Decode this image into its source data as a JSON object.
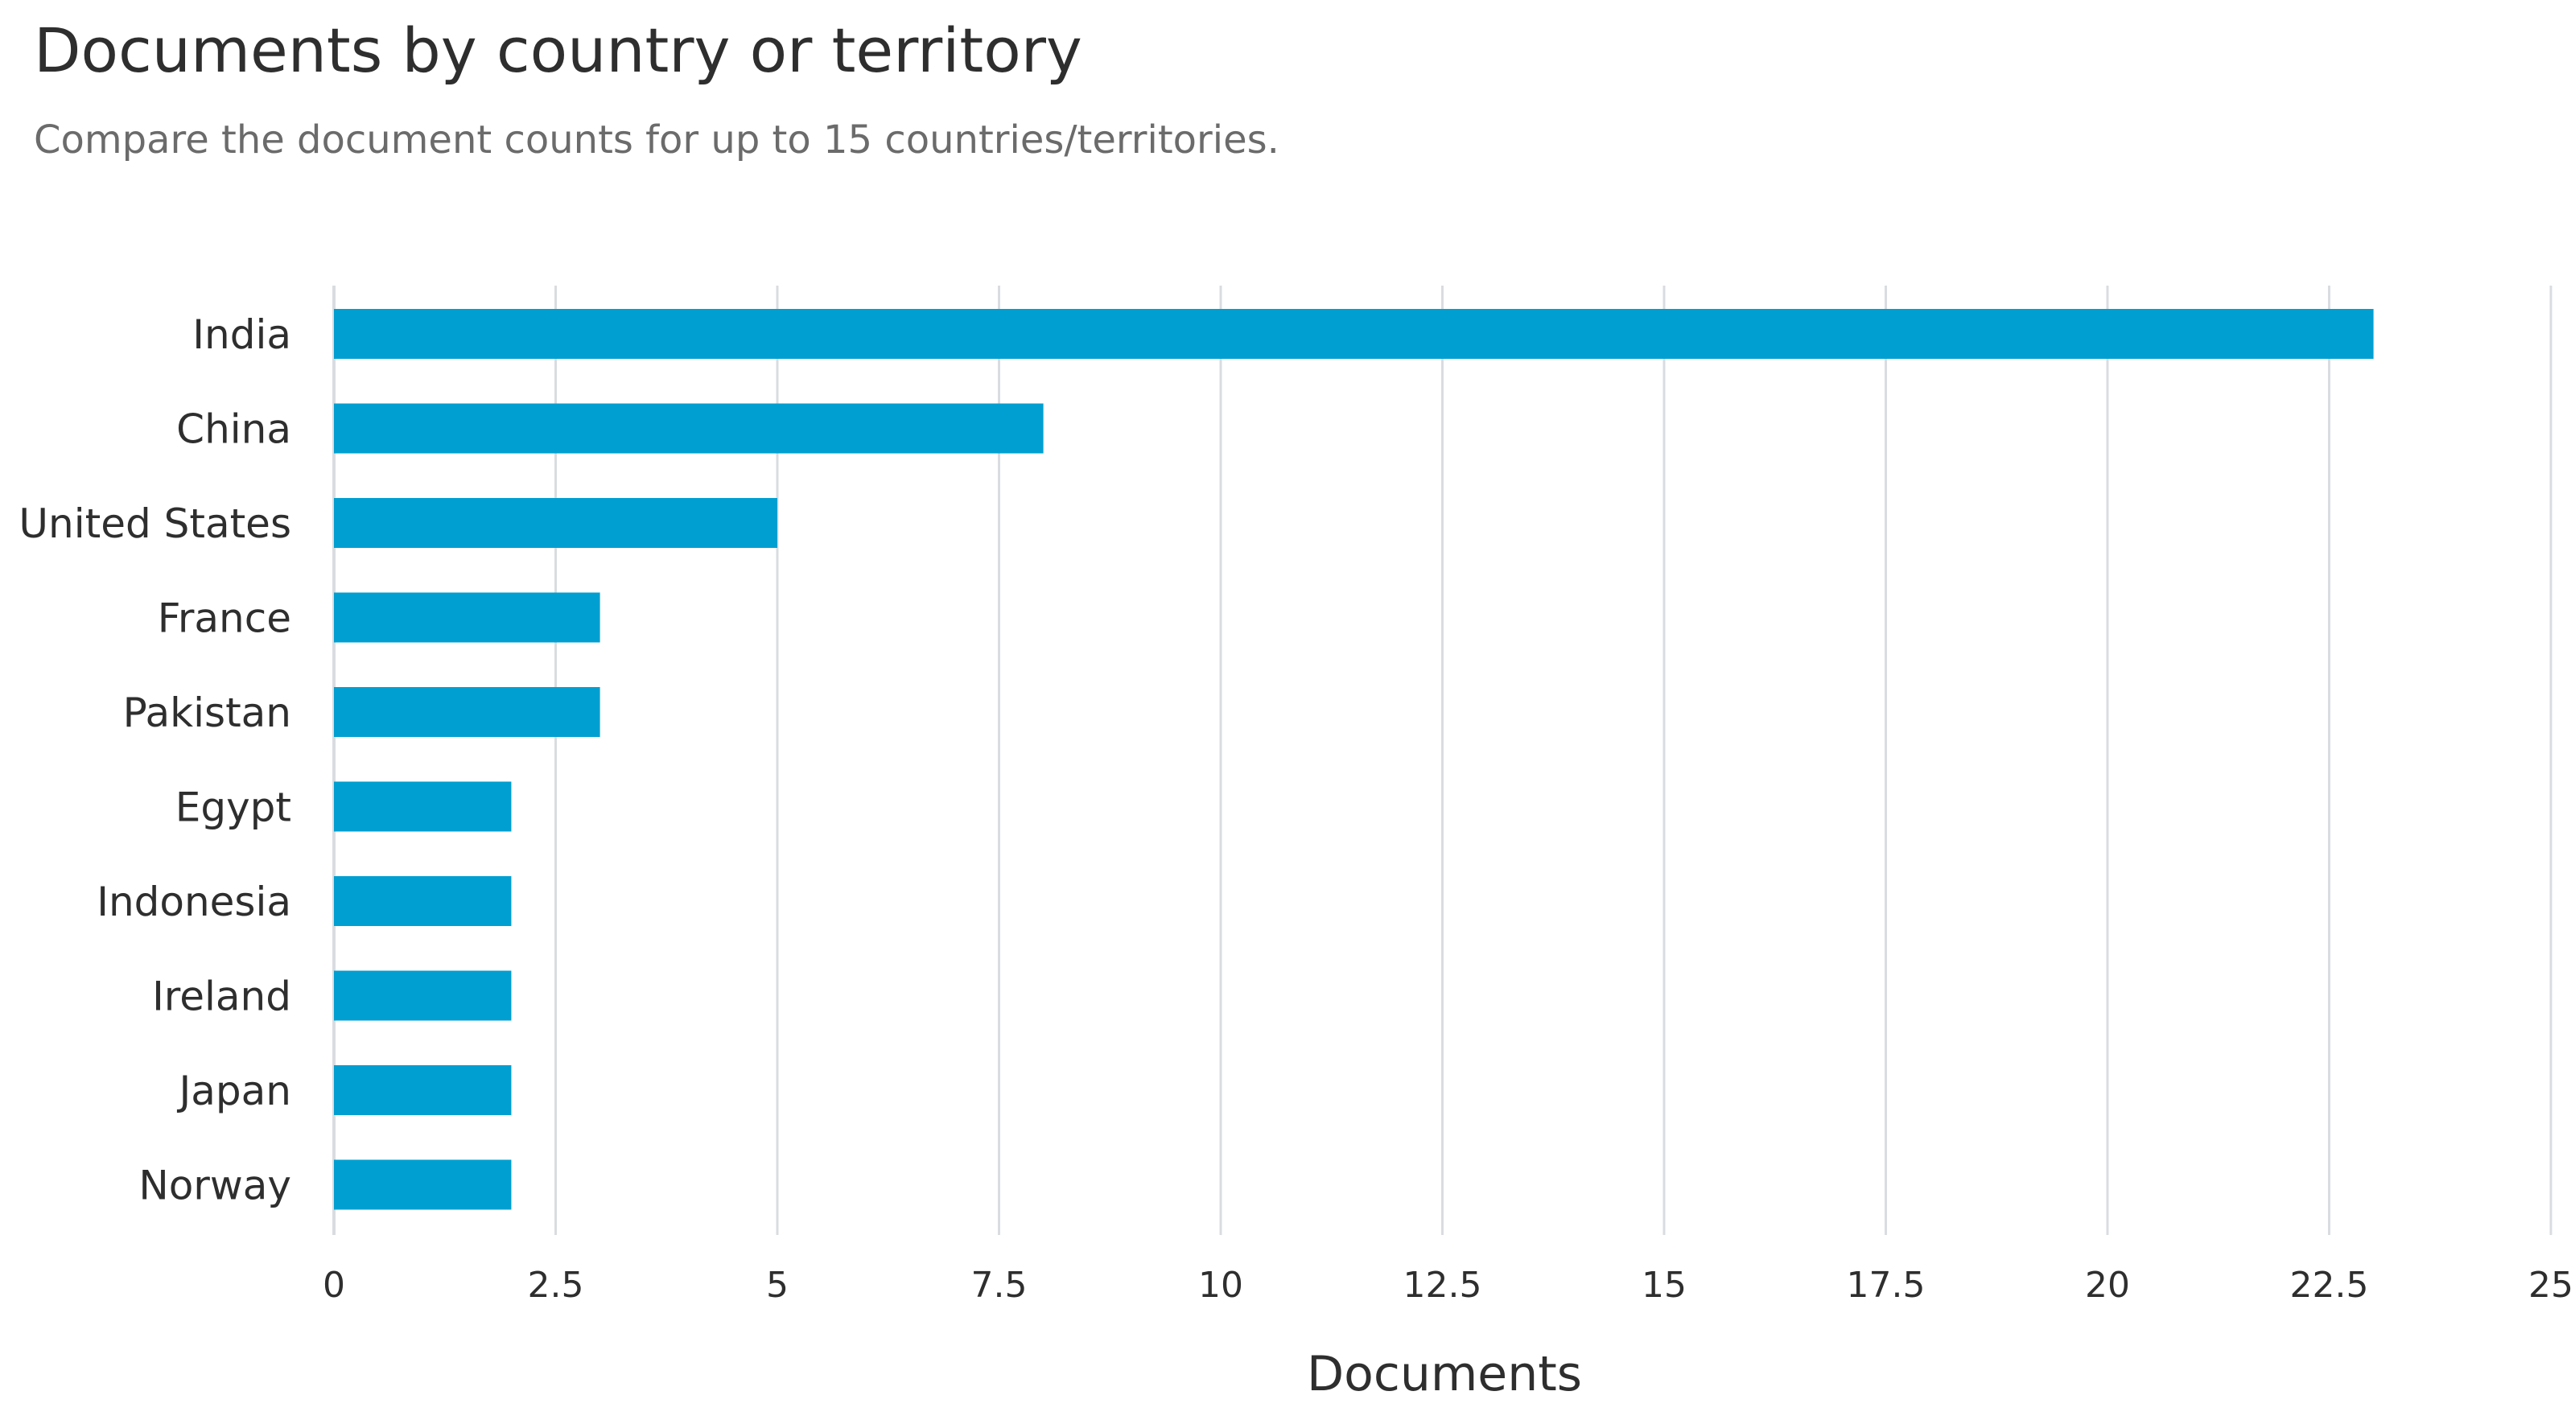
{
  "header": {
    "title": "Documents by country or territory",
    "subtitle": "Compare the document counts for up to 15 countries/territories."
  },
  "colors": {
    "bar": "#009fd1",
    "grid": "#d9dce0",
    "text": "#2e2e2e"
  },
  "chart_data": {
    "type": "bar",
    "orientation": "horizontal",
    "categories": [
      "India",
      "China",
      "United States",
      "France",
      "Pakistan",
      "Egypt",
      "Indonesia",
      "Ireland",
      "Japan",
      "Norway"
    ],
    "values": [
      23,
      8,
      5,
      3,
      3,
      2,
      2,
      2,
      2,
      2
    ],
    "xlabel": "Documents",
    "xlim": [
      0,
      25
    ],
    "xticks": [
      "0",
      "2.5",
      "5",
      "7.5",
      "10",
      "12.5",
      "15",
      "17.5",
      "20",
      "22.5",
      "25"
    ],
    "grid": "vertical"
  }
}
